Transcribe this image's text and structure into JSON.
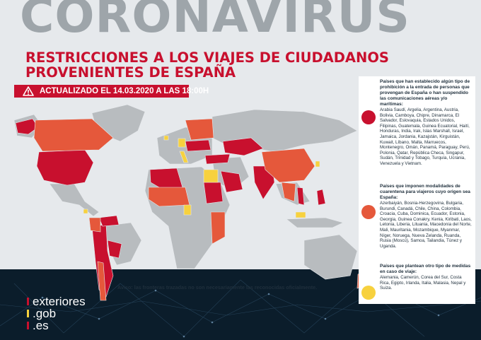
{
  "header": {
    "background_word": "CORONAVIRUS",
    "title_line1": "RESTRICCIONES A LOS VIAJES DE CIUDADANOS",
    "title_line2": "PROVENIENTES DE ESPAÑA",
    "update_banner": "ACTUALIZADO EL 14.03.2020 A LAS 18:00H"
  },
  "map": {
    "disclaimer": "Aviso: las fronteras trazadas no son necesariamente las reconocidas oficialmente."
  },
  "legend": {
    "categories": [
      {
        "color": "#c8102e",
        "heading": "Países que han establecido algún tipo de prohibición a la entrada de personas que provengan de España o han suspendido las comunicaciones aéreas y/o marítimas:",
        "countries": "Arabia Saudí, Argelia, Argentina, Austria, Bolivia, Camboya, Chipre, Dinamarca, El Salvador, Eslovaquia, Estados Unidos, Filipinas, Guatemala, Guinea Ecuatorial, Haití, Honduras, India, Irak, Islas Marshall, Israel, Jamaica, Jordania, Kazajstán, Kirguistán, Kuwait, Líbano, Malta, Marruecos, Montenegro, Omán, Panamá, Paraguay, Perú, Polonia, Qatar, República Checa, Singapur, Sudán, Trinidad y Tobago, Turquía, Ucrania, Venezuela y Vietnam."
      },
      {
        "color": "#e5583b",
        "heading": "Países que imponen modalidades de cuarentena para viajeros cuyo origen sea España:",
        "countries": "Azerbaiyán, Bosnia-Herzegovina, Bulgaria, Burundi, Canadá, Chile, China, Colombia, Croacia, Cuba, Dominica, Ecuador, Estonia, Georgia, Guinea Conakry, Kenia, Kiribati, Laos, Letonia, Liberia, Lituania, Macedonia del Norte, Mali, Mauritania, Mozambique, Myanmar, Níger, Noruega, Nueva Zelanda, Ruanda, Rusia (Moscú), Samoa, Tailandia, Túnez y Uganda."
      },
      {
        "color": "#f7d13e",
        "heading": "Países que plantean otro tipo de medidas en caso de viaje:",
        "countries": "Alemania, Camerún, Corea del Sur, Costa Rica, Egipto, Irlanda, Italia, Malasia, Nepal y Suiza."
      }
    ]
  },
  "brand": {
    "line1": "exteriores",
    "line2": ".gob",
    "line3": ".es",
    "flag_red": "#c8102e",
    "flag_yellow": "#f7d13e"
  },
  "colors": {
    "grey_country": "#b8bcbf",
    "banned": "#c8102e",
    "quarantine": "#e5583b",
    "other": "#f7d13e"
  }
}
